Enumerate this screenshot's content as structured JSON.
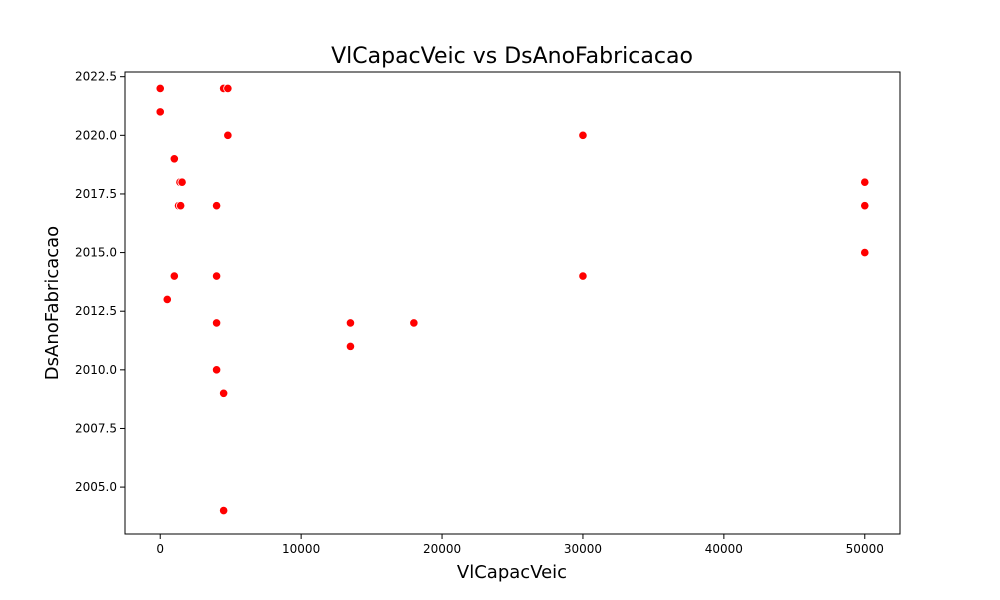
{
  "chart_data": {
    "type": "scatter",
    "title": "VlCapacVeic vs DsAnoFabricacao",
    "xlabel": "VlCapacVeic",
    "ylabel": "DsAnoFabricacao",
    "xlim": [
      -2500,
      52500
    ],
    "ylim": [
      2003,
      2022.7
    ],
    "xticks": [
      0,
      10000,
      20000,
      30000,
      40000,
      50000
    ],
    "xtick_labels": [
      "0",
      "10000",
      "20000",
      "30000",
      "40000",
      "50000"
    ],
    "yticks": [
      2005.0,
      2007.5,
      2010.0,
      2012.5,
      2015.0,
      2017.5,
      2020.0,
      2022.5
    ],
    "ytick_labels": [
      "2005.0",
      "2007.5",
      "2010.0",
      "2012.5",
      "2015.0",
      "2017.5",
      "2020.0",
      "2022.5"
    ],
    "grid": false,
    "point_color": "#ff0000",
    "points": [
      {
        "x": 0,
        "y": 2022
      },
      {
        "x": 0,
        "y": 2021
      },
      {
        "x": 4500,
        "y": 2022
      },
      {
        "x": 4800,
        "y": 2022
      },
      {
        "x": 4800,
        "y": 2020
      },
      {
        "x": 1000,
        "y": 2019
      },
      {
        "x": 1400,
        "y": 2018
      },
      {
        "x": 1550,
        "y": 2018
      },
      {
        "x": 1300,
        "y": 2017
      },
      {
        "x": 1450,
        "y": 2017
      },
      {
        "x": 4000,
        "y": 2017
      },
      {
        "x": 1000,
        "y": 2014
      },
      {
        "x": 4000,
        "y": 2014
      },
      {
        "x": 500,
        "y": 2013
      },
      {
        "x": 4000,
        "y": 2012
      },
      {
        "x": 4000,
        "y": 2010
      },
      {
        "x": 4500,
        "y": 2009
      },
      {
        "x": 4500,
        "y": 2004
      },
      {
        "x": 13500,
        "y": 2012
      },
      {
        "x": 13500,
        "y": 2011
      },
      {
        "x": 18000,
        "y": 2012
      },
      {
        "x": 30000,
        "y": 2020
      },
      {
        "x": 30000,
        "y": 2014
      },
      {
        "x": 50000,
        "y": 2018
      },
      {
        "x": 50000,
        "y": 2017
      },
      {
        "x": 50000,
        "y": 2015
      }
    ]
  }
}
